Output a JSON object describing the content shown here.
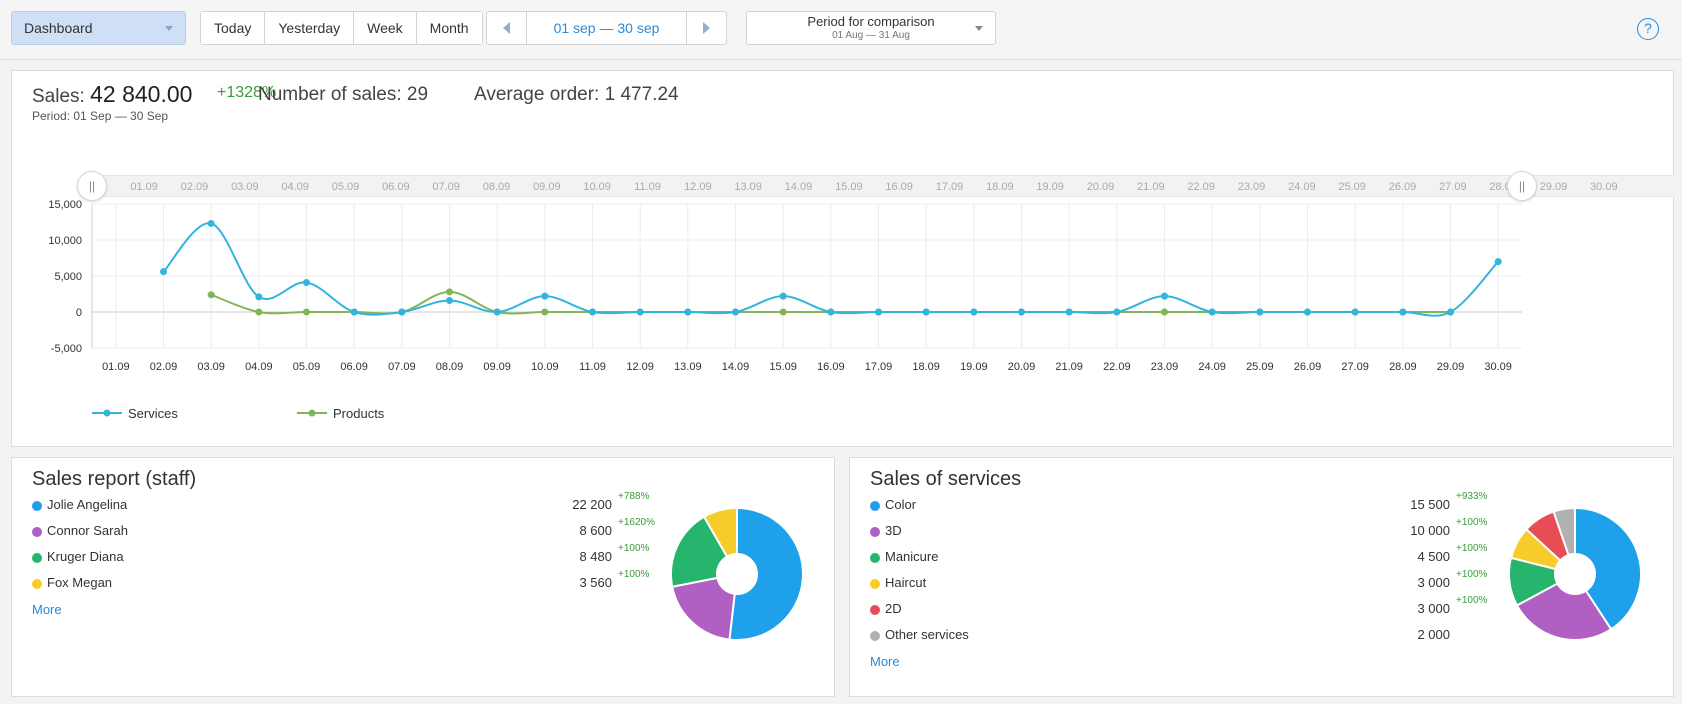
{
  "toolbar": {
    "dashboard_label": "Dashboard",
    "buttons": [
      "Today",
      "Yesterday",
      "Week",
      "Month"
    ],
    "period_range": "01 sep — 30 sep",
    "compare_title": "Period for comparison",
    "compare_range": "01 Aug — 31 Aug",
    "help_label": "?"
  },
  "summary": {
    "sales_label": "Sales:",
    "sales_value": "42 840.00",
    "sales_growth": "+1328%",
    "count_label": "Number of sales: 29",
    "avg_label": "Average order: 1 477.24",
    "period_label": "Period: 01 Sep — 30 Sep"
  },
  "chart_data": {
    "type": "line",
    "x": [
      "01.09",
      "02.09",
      "03.09",
      "04.09",
      "05.09",
      "06.09",
      "07.09",
      "08.09",
      "09.09",
      "10.09",
      "11.09",
      "12.09",
      "13.09",
      "14.09",
      "15.09",
      "16.09",
      "17.09",
      "18.09",
      "19.09",
      "20.09",
      "21.09",
      "22.09",
      "23.09",
      "24.09",
      "25.09",
      "26.09",
      "27.09",
      "28.09",
      "29.09",
      "30.09"
    ],
    "ylim": [
      -5000,
      15000
    ],
    "yticks": [
      15000,
      10000,
      5000,
      0,
      -5000
    ],
    "ytick_labels": [
      "15,000",
      "10,000",
      "5,000",
      "0",
      "-5,000"
    ],
    "grid": true,
    "legend_position": "bottom-left",
    "series": [
      {
        "name": "Services",
        "color": "#32b4dc",
        "values": [
          null,
          5600,
          12300,
          2100,
          4100,
          0,
          0,
          1600,
          0,
          2200,
          0,
          0,
          0,
          0,
          2200,
          0,
          0,
          0,
          0,
          0,
          0,
          0,
          2200,
          0,
          0,
          0,
          0,
          0,
          0,
          7000
        ]
      },
      {
        "name": "Products",
        "color": "#82b45a",
        "values": [
          null,
          null,
          2400,
          0,
          0,
          0,
          0,
          2800,
          0,
          0,
          0,
          0,
          0,
          0,
          0,
          0,
          0,
          0,
          0,
          0,
          0,
          0,
          0,
          0,
          0,
          0,
          0,
          0,
          0,
          null
        ]
      }
    ]
  },
  "staff_report": {
    "title": "Sales report (staff)",
    "items": [
      {
        "name": "Jolie Angelina",
        "value": "22 200",
        "amount": 22200,
        "growth": "+788%",
        "color": "#1fa0ea"
      },
      {
        "name": "Connor Sarah",
        "value": "8 600",
        "amount": 8600,
        "growth": "+1620%",
        "color": "#b05fc2"
      },
      {
        "name": "Kruger Diana",
        "value": "8 480",
        "amount": 8480,
        "growth": "+100%",
        "color": "#26b56c"
      },
      {
        "name": "Fox Megan",
        "value": "3 560",
        "amount": 3560,
        "growth": "+100%",
        "color": "#f6cc2b"
      }
    ],
    "more_label": "More"
  },
  "services_report": {
    "title": "Sales of services",
    "items": [
      {
        "name": "Color",
        "value": "15 500",
        "amount": 15500,
        "growth": "+933%",
        "color": "#1fa0ea"
      },
      {
        "name": "3D",
        "value": "10 000",
        "amount": 10000,
        "growth": "+100%",
        "color": "#b05fc2"
      },
      {
        "name": "Manicure",
        "value": "4 500",
        "amount": 4500,
        "growth": "+100%",
        "color": "#26b56c"
      },
      {
        "name": "Haircut",
        "value": "3 000",
        "amount": 3000,
        "growth": "+100%",
        "color": "#f6cc2b"
      },
      {
        "name": "2D",
        "value": "3 000",
        "amount": 3000,
        "growth": "+100%",
        "color": "#e84c55"
      },
      {
        "name": "Other services",
        "value": "2 000",
        "amount": 2000,
        "growth": "",
        "color": "#b1b1b1"
      }
    ],
    "more_label": "More"
  }
}
